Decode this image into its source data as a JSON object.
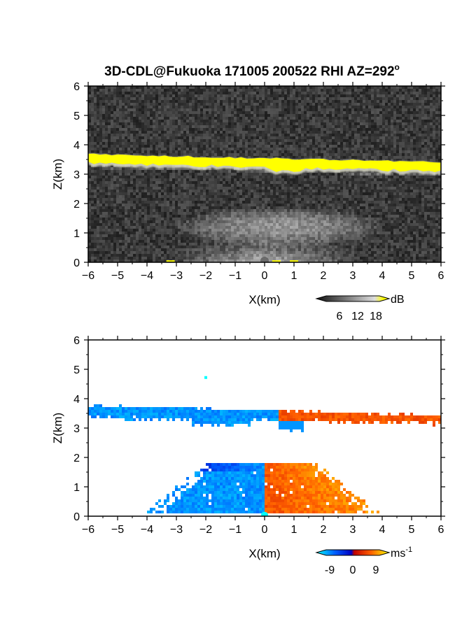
{
  "title_main": "3D-CDL@Fukuoka 171005 200522 RHI AZ=292",
  "title_sup": "o",
  "chart_data": [
    {
      "type": "heatmap",
      "name": "backscatter-intensity",
      "xlabel": "X(km)",
      "ylabel": "Z(km)",
      "xlim": [
        -6,
        6
      ],
      "ylim": [
        0,
        6
      ],
      "xticks": [
        "-6",
        "-5",
        "-4",
        "-3",
        "-2",
        "-1",
        "0",
        "1",
        "2",
        "3",
        "4",
        "5",
        "6"
      ],
      "yticks": [
        "0",
        "1",
        "2",
        "3",
        "4",
        "5",
        "6"
      ],
      "colorbar": {
        "unit": "dB",
        "ticks": [
          "6",
          "12",
          "18"
        ],
        "colormap": "grayscale-to-yellow"
      },
      "features": [
        {
          "type": "layer",
          "x": [
            -6,
            6
          ],
          "z_top": [
            3.68,
            3.4
          ],
          "z_bottom": [
            3.38,
            3.1
          ],
          "level": "saturated-yellow"
        },
        {
          "type": "diffuse-layer",
          "x": [
            -3,
            4
          ],
          "z": [
            0.5,
            1.9
          ],
          "level": "medium-gray"
        },
        {
          "type": "near-ground-bright",
          "x": [
            -1.5,
            1.5
          ],
          "z": [
            0,
            0.6
          ],
          "level": "light-gray"
        }
      ]
    },
    {
      "type": "heatmap",
      "name": "doppler-velocity",
      "xlabel": "X(km)",
      "ylabel": "Z(km)",
      "xlim": [
        -6,
        6
      ],
      "ylim": [
        0,
        6
      ],
      "xticks": [
        "-6",
        "-5",
        "-4",
        "-3",
        "-2",
        "-1",
        "0",
        "1",
        "2",
        "3",
        "4",
        "5",
        "6"
      ],
      "yticks": [
        "0",
        "1",
        "2",
        "3",
        "4",
        "5",
        "6"
      ],
      "colorbar": {
        "unit": "ms",
        "unit_sup": "-1",
        "ticks": [
          "-9",
          "0",
          "9"
        ],
        "colormap": "cyan-blue-red-yellow",
        "range": [
          -9,
          9
        ]
      },
      "features": [
        {
          "type": "layer",
          "x": [
            -6,
            6
          ],
          "z": [
            3.0,
            3.75
          ],
          "velocity_left": -6,
          "velocity_right": 4
        },
        {
          "type": "layer",
          "x": [
            -4,
            4
          ],
          "z": [
            0,
            1.85
          ],
          "velocity_left": -6,
          "velocity_right": 4
        }
      ]
    }
  ],
  "colors": {
    "yellow_band": "#ffff00",
    "background": "#ffffff",
    "gray_noise_dark": "#222222",
    "negative_velocity": "#1a4fe0",
    "positive_velocity": "#ff4a1a"
  }
}
